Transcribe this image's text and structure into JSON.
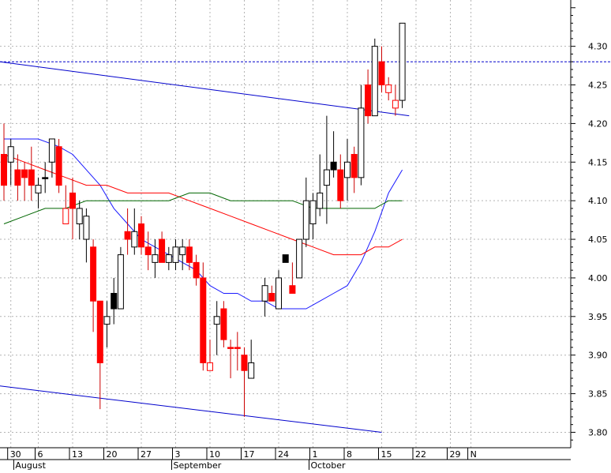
{
  "chart_data": {
    "type": "candlestick",
    "title": "",
    "xlabel": "",
    "ylabel": "",
    "ylim": [
      3.78,
      4.36
    ],
    "y_ticks": [
      3.8,
      3.85,
      3.9,
      3.95,
      4.0,
      4.05,
      4.1,
      4.15,
      4.2,
      4.25,
      4.3
    ],
    "y_tick_labels": [
      "3.80",
      "3.85",
      "3.90",
      "3.95",
      "4.00",
      "4.05",
      "4.10",
      "4.15",
      "4.20",
      "4.25",
      "4.30"
    ],
    "x_ticks": [
      {
        "i": 1,
        "label": "30"
      },
      {
        "i": 5,
        "label": "6"
      },
      {
        "i": 10,
        "label": "13"
      },
      {
        "i": 15,
        "label": "20"
      },
      {
        "i": 20,
        "label": "27"
      },
      {
        "i": 25,
        "label": "3"
      },
      {
        "i": 30,
        "label": "10"
      },
      {
        "i": 35,
        "label": "17"
      },
      {
        "i": 40,
        "label": "24"
      },
      {
        "i": 45,
        "label": "1"
      },
      {
        "i": 50,
        "label": "8"
      },
      {
        "i": 55,
        "label": "15"
      },
      {
        "i": 60,
        "label": "22"
      },
      {
        "i": 65,
        "label": "29"
      },
      {
        "i": 68,
        "label": "N"
      }
    ],
    "months": [
      {
        "i": 2,
        "label": "August"
      },
      {
        "i": 25,
        "label": "September"
      },
      {
        "i": 45,
        "label": "October"
      }
    ],
    "grid": true,
    "reference_line": {
      "value": 4.28,
      "color": "#0000cc",
      "style": "dotted"
    },
    "candles": [
      {
        "i": 0,
        "o": 4.16,
        "h": 4.2,
        "l": 4.1,
        "c": 4.12,
        "fill": "red"
      },
      {
        "i": 1,
        "o": 4.15,
        "h": 4.18,
        "l": 4.12,
        "c": 4.17,
        "fill": "white"
      },
      {
        "i": 2,
        "o": 4.14,
        "h": 4.16,
        "l": 4.1,
        "c": 4.12,
        "fill": "red"
      },
      {
        "i": 3,
        "o": 4.14,
        "h": 4.15,
        "l": 4.1,
        "c": 4.13,
        "fill": "red"
      },
      {
        "i": 4,
        "o": 4.14,
        "h": 4.17,
        "l": 4.1,
        "c": 4.12,
        "fill": "red"
      },
      {
        "i": 5,
        "o": 4.11,
        "h": 4.13,
        "l": 4.09,
        "c": 4.12,
        "fill": "white"
      },
      {
        "i": 6,
        "o": 4.13,
        "h": 4.15,
        "l": 4.11,
        "c": 4.13,
        "fill": "black"
      },
      {
        "i": 7,
        "o": 4.15,
        "h": 4.18,
        "l": 4.13,
        "c": 4.18,
        "fill": "white"
      },
      {
        "i": 8,
        "o": 4.17,
        "h": 4.18,
        "l": 4.11,
        "c": 4.12,
        "fill": "red"
      },
      {
        "i": 9,
        "o": 4.09,
        "h": 4.12,
        "l": 4.07,
        "c": 4.07,
        "fill": "red-hollow"
      },
      {
        "i": 10,
        "o": 4.11,
        "h": 4.13,
        "l": 4.05,
        "c": 4.09,
        "fill": "red"
      },
      {
        "i": 11,
        "o": 4.07,
        "h": 4.1,
        "l": 4.05,
        "c": 4.09,
        "fill": "white"
      },
      {
        "i": 12,
        "o": 4.05,
        "h": 4.09,
        "l": 4.02,
        "c": 4.08,
        "fill": "white"
      },
      {
        "i": 13,
        "o": 4.04,
        "h": 4.05,
        "l": 3.93,
        "c": 3.97,
        "fill": "red"
      },
      {
        "i": 14,
        "o": 3.97,
        "h": 3.97,
        "l": 3.83,
        "c": 3.89,
        "fill": "red"
      },
      {
        "i": 15,
        "o": 3.94,
        "h": 3.97,
        "l": 3.91,
        "c": 3.95,
        "fill": "white"
      },
      {
        "i": 16,
        "o": 3.98,
        "h": 4.0,
        "l": 3.94,
        "c": 3.96,
        "fill": "black"
      },
      {
        "i": 17,
        "o": 3.96,
        "h": 4.04,
        "l": 3.96,
        "c": 4.03,
        "fill": "white"
      },
      {
        "i": 18,
        "o": 4.06,
        "h": 4.09,
        "l": 4.03,
        "c": 4.05,
        "fill": "red"
      },
      {
        "i": 19,
        "o": 4.04,
        "h": 4.09,
        "l": 4.03,
        "c": 4.06,
        "fill": "white"
      },
      {
        "i": 20,
        "o": 4.07,
        "h": 4.08,
        "l": 4.03,
        "c": 4.04,
        "fill": "red"
      },
      {
        "i": 21,
        "o": 4.04,
        "h": 4.06,
        "l": 4.01,
        "c": 4.03,
        "fill": "red"
      },
      {
        "i": 22,
        "o": 4.03,
        "h": 4.05,
        "l": 4.0,
        "c": 4.02,
        "fill": "white"
      },
      {
        "i": 23,
        "o": 4.05,
        "h": 4.06,
        "l": 4.02,
        "c": 4.02,
        "fill": "red"
      },
      {
        "i": 24,
        "o": 4.02,
        "h": 4.04,
        "l": 4.01,
        "c": 4.03,
        "fill": "white"
      },
      {
        "i": 25,
        "o": 4.02,
        "h": 4.05,
        "l": 4.01,
        "c": 4.04,
        "fill": "white"
      },
      {
        "i": 26,
        "o": 4.04,
        "h": 4.05,
        "l": 4.01,
        "c": 4.03,
        "fill": "white"
      },
      {
        "i": 27,
        "o": 4.04,
        "h": 4.05,
        "l": 4.01,
        "c": 4.02,
        "fill": "red"
      },
      {
        "i": 28,
        "o": 4.02,
        "h": 4.03,
        "l": 3.99,
        "c": 4.0,
        "fill": "red"
      },
      {
        "i": 29,
        "o": 4.0,
        "h": 4.02,
        "l": 3.88,
        "c": 3.89,
        "fill": "red"
      },
      {
        "i": 30,
        "o": 3.89,
        "h": 3.92,
        "l": 3.88,
        "c": 3.88,
        "fill": "red-hollow"
      },
      {
        "i": 31,
        "o": 3.94,
        "h": 3.97,
        "l": 3.9,
        "c": 3.95,
        "fill": "white"
      },
      {
        "i": 32,
        "o": 3.96,
        "h": 3.97,
        "l": 3.91,
        "c": 3.92,
        "fill": "red"
      },
      {
        "i": 33,
        "o": 3.91,
        "h": 3.92,
        "l": 3.87,
        "c": 3.91,
        "fill": "red"
      },
      {
        "i": 34,
        "o": 3.91,
        "h": 3.93,
        "l": 3.88,
        "c": 3.91,
        "fill": "red"
      },
      {
        "i": 35,
        "o": 3.9,
        "h": 3.91,
        "l": 3.82,
        "c": 3.88,
        "fill": "red"
      },
      {
        "i": 36,
        "o": 3.87,
        "h": 3.92,
        "l": 3.87,
        "c": 3.89,
        "fill": "white"
      },
      {
        "i": 38,
        "o": 3.97,
        "h": 4.0,
        "l": 3.95,
        "c": 3.99,
        "fill": "white"
      },
      {
        "i": 39,
        "o": 3.98,
        "h": 3.99,
        "l": 3.97,
        "c": 3.97,
        "fill": "red"
      },
      {
        "i": 40,
        "o": 3.96,
        "h": 4.01,
        "l": 3.96,
        "c": 4.0,
        "fill": "white"
      },
      {
        "i": 41,
        "o": 4.02,
        "h": 4.03,
        "l": 4.02,
        "c": 4.03,
        "fill": "black"
      },
      {
        "i": 42,
        "o": 3.99,
        "h": 4.02,
        "l": 3.98,
        "c": 3.98,
        "fill": "red"
      },
      {
        "i": 43,
        "o": 4.0,
        "h": 4.05,
        "l": 4.0,
        "c": 4.05,
        "fill": "white"
      },
      {
        "i": 44,
        "o": 4.05,
        "h": 4.13,
        "l": 4.04,
        "c": 4.1,
        "fill": "white"
      },
      {
        "i": 45,
        "o": 4.1,
        "h": 4.11,
        "l": 4.05,
        "c": 4.07,
        "fill": "white"
      },
      {
        "i": 46,
        "o": 4.09,
        "h": 4.16,
        "l": 4.08,
        "c": 4.11,
        "fill": "white"
      },
      {
        "i": 47,
        "o": 4.12,
        "h": 4.21,
        "l": 4.07,
        "c": 4.14,
        "fill": "white"
      },
      {
        "i": 48,
        "o": 4.14,
        "h": 4.19,
        "l": 4.13,
        "c": 4.15,
        "fill": "black"
      },
      {
        "i": 49,
        "o": 4.14,
        "h": 4.16,
        "l": 4.09,
        "c": 4.1,
        "fill": "red"
      },
      {
        "i": 50,
        "o": 4.13,
        "h": 4.18,
        "l": 4.1,
        "c": 4.15,
        "fill": "white"
      },
      {
        "i": 51,
        "o": 4.16,
        "h": 4.17,
        "l": 4.11,
        "c": 4.13,
        "fill": "red"
      },
      {
        "i": 52,
        "o": 4.13,
        "h": 4.25,
        "l": 4.12,
        "c": 4.22,
        "fill": "white"
      },
      {
        "i": 53,
        "o": 4.25,
        "h": 4.27,
        "l": 4.2,
        "c": 4.21,
        "fill": "red"
      },
      {
        "i": 54,
        "o": 4.21,
        "h": 4.31,
        "l": 4.21,
        "c": 4.3,
        "fill": "white"
      },
      {
        "i": 55,
        "o": 4.28,
        "h": 4.3,
        "l": 4.24,
        "c": 4.25,
        "fill": "red"
      },
      {
        "i": 56,
        "o": 4.25,
        "h": 4.26,
        "l": 4.23,
        "c": 4.24,
        "fill": "red-hollow"
      },
      {
        "i": 57,
        "o": 4.23,
        "h": 4.25,
        "l": 4.21,
        "c": 4.22,
        "fill": "red-hollow"
      },
      {
        "i": 58,
        "o": 4.23,
        "h": 4.33,
        "l": 4.22,
        "c": 4.33,
        "fill": "white"
      }
    ],
    "series": [
      {
        "color": "#1a1aff",
        "points": [
          [
            0,
            4.18
          ],
          [
            2,
            4.18
          ],
          [
            5,
            4.18
          ],
          [
            8,
            4.17
          ],
          [
            10,
            4.16
          ],
          [
            12,
            4.14
          ],
          [
            14,
            4.12
          ],
          [
            16,
            4.09
          ],
          [
            18,
            4.07
          ],
          [
            20,
            4.05
          ],
          [
            22,
            4.04
          ],
          [
            24,
            4.03
          ],
          [
            26,
            4.02
          ],
          [
            28,
            4.01
          ],
          [
            30,
            3.99
          ],
          [
            32,
            3.98
          ],
          [
            34,
            3.98
          ],
          [
            36,
            3.97
          ],
          [
            38,
            3.97
          ],
          [
            40,
            3.96
          ],
          [
            42,
            3.96
          ],
          [
            44,
            3.96
          ],
          [
            46,
            3.97
          ],
          [
            48,
            3.98
          ],
          [
            50,
            3.99
          ],
          [
            52,
            4.02
          ],
          [
            54,
            4.06
          ],
          [
            56,
            4.11
          ],
          [
            58,
            4.14
          ]
        ]
      },
      {
        "color": "#ff0000",
        "points": [
          [
            0,
            4.16
          ],
          [
            3,
            4.15
          ],
          [
            6,
            4.14
          ],
          [
            9,
            4.13
          ],
          [
            12,
            4.12
          ],
          [
            15,
            4.12
          ],
          [
            18,
            4.11
          ],
          [
            21,
            4.11
          ],
          [
            24,
            4.11
          ],
          [
            27,
            4.1
          ],
          [
            30,
            4.09
          ],
          [
            33,
            4.08
          ],
          [
            36,
            4.07
          ],
          [
            39,
            4.06
          ],
          [
            42,
            4.05
          ],
          [
            45,
            4.04
          ],
          [
            48,
            4.03
          ],
          [
            50,
            4.03
          ],
          [
            52,
            4.03
          ],
          [
            54,
            4.04
          ],
          [
            56,
            4.04
          ],
          [
            58,
            4.05
          ]
        ]
      },
      {
        "color": "#006600",
        "points": [
          [
            0,
            4.07
          ],
          [
            3,
            4.08
          ],
          [
            6,
            4.09
          ],
          [
            9,
            4.09
          ],
          [
            12,
            4.1
          ],
          [
            15,
            4.1
          ],
          [
            18,
            4.1
          ],
          [
            21,
            4.1
          ],
          [
            24,
            4.1
          ],
          [
            27,
            4.11
          ],
          [
            30,
            4.11
          ],
          [
            33,
            4.1
          ],
          [
            36,
            4.1
          ],
          [
            39,
            4.1
          ],
          [
            42,
            4.1
          ],
          [
            45,
            4.09
          ],
          [
            48,
            4.09
          ],
          [
            51,
            4.09
          ],
          [
            54,
            4.09
          ],
          [
            56,
            4.1
          ],
          [
            58,
            4.1
          ]
        ]
      }
    ],
    "trendlines": [
      {
        "color": "#0000cc",
        "from": [
          0,
          4.28
        ],
        "to": [
          59,
          4.21
        ]
      },
      {
        "color": "#0000cc",
        "from": [
          0,
          3.86
        ],
        "to": [
          55,
          3.8
        ]
      }
    ]
  }
}
